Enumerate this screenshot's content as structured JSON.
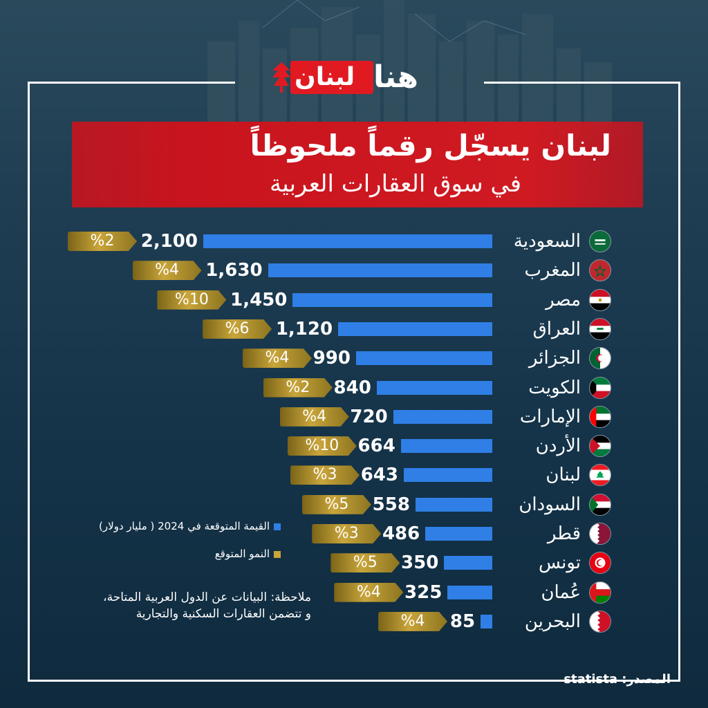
{
  "header": {
    "logo_lebanon": "لبنان",
    "logo_hona": "هنا",
    "title_line1": "لبنان يسجّل رقماً ملحوظاً",
    "title_line2": "في سوق العقارات العربية"
  },
  "chart_data": {
    "type": "bar",
    "orientation": "horizontal",
    "categories": [
      "السعودية",
      "المغرب",
      "مصر",
      "العراق",
      "الجزائر",
      "الكويت",
      "الإمارات",
      "الأردن",
      "لبنان",
      "السودان",
      "قطر",
      "تونس",
      "عُمان",
      "البحرين"
    ],
    "series": [
      {
        "name": "القيمة المتوقعة في 2024 ( مليار دولار)",
        "values": [
          2100,
          1630,
          1450,
          1120,
          990,
          840,
          720,
          664,
          643,
          558,
          486,
          350,
          325,
          85
        ],
        "color": "#2f7fe6"
      },
      {
        "name": "النمو المتوقع",
        "values": [
          2,
          4,
          10,
          6,
          4,
          2,
          4,
          10,
          3,
          5,
          3,
          5,
          4,
          4
        ],
        "color": "#c9a53a"
      }
    ],
    "value_labels": [
      "2,100",
      "1,630",
      "1,450",
      "1,120",
      "990",
      "840",
      "720",
      "664",
      "643",
      "558",
      "486",
      "350",
      "325",
      "85"
    ],
    "growth_labels": [
      "%2",
      "%4",
      "%10",
      "%6",
      "%4",
      "%2",
      "%4",
      "%10",
      "%3",
      "%5",
      "%3",
      "%5",
      "%4",
      "%4"
    ],
    "flags": [
      "saudi-arabia",
      "morocco",
      "egypt",
      "iraq",
      "algeria",
      "kuwait",
      "uae",
      "jordan",
      "lebanon",
      "sudan",
      "qatar",
      "tunisia",
      "oman",
      "bahrain"
    ]
  },
  "legend": {
    "value_label": "القيمة المتوقعة في 2024 ( مليار دولار)",
    "growth_label": "النمو المتوقع"
  },
  "note": {
    "line1": "ملاحظة: البيانات عن الدول العربية المتاحة،",
    "line2": "و تتضمن العقارات السكنية والتجارية"
  },
  "source": "المصدر: statista",
  "colors": {
    "brand_red": "#e11a22",
    "bar_blue": "#2f7fe6",
    "tag_gold": "#c9a53a"
  }
}
